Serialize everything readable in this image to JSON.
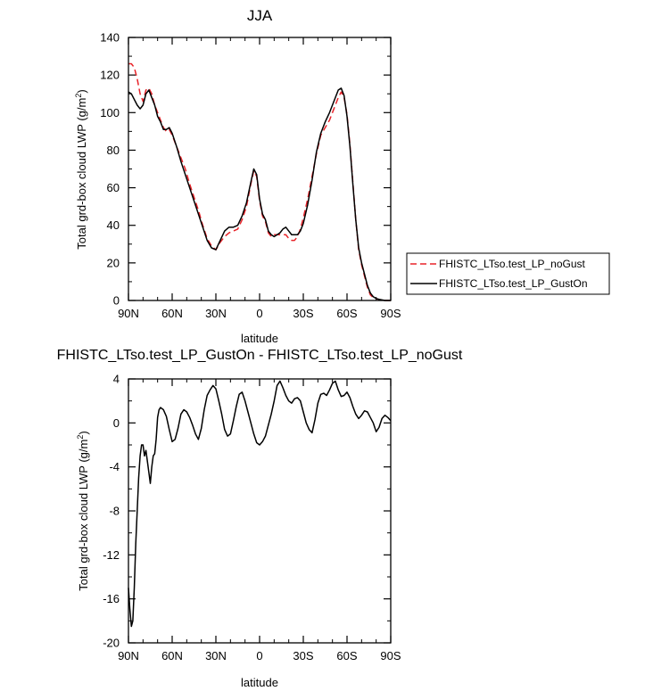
{
  "chart_data": [
    {
      "type": "line",
      "title": "JJA",
      "xlabel": "latitude",
      "ylabel": "Total grd-box cloud LWP (g/m²)",
      "xlim": [
        90,
        -90
      ],
      "ylim": [
        0,
        140
      ],
      "xticks": [
        {
          "value": 90,
          "label": "90N"
        },
        {
          "value": 60,
          "label": "60N"
        },
        {
          "value": 30,
          "label": "30N"
        },
        {
          "value": 0,
          "label": "0"
        },
        {
          "value": -30,
          "label": "30S"
        },
        {
          "value": -60,
          "label": "60S"
        },
        {
          "value": -90,
          "label": "90S"
        }
      ],
      "yticks": [
        0,
        20,
        40,
        60,
        80,
        100,
        120,
        140
      ],
      "legend": [
        "FHISTC_LTso.test_LP_noGust",
        "FHISTC_LTso.test_LP_GustOn"
      ],
      "series": [
        {
          "name": "FHISTC_LTso.test_LP_noGust",
          "color": "#e8242a",
          "dash": "dashed",
          "x": [
            90,
            88,
            86,
            84,
            82,
            80,
            78,
            76,
            74,
            72,
            70,
            68,
            66,
            64,
            62,
            60,
            57,
            54,
            51,
            48,
            45,
            42,
            39,
            36,
            33,
            30,
            27,
            24,
            21,
            18,
            15,
            12,
            9,
            6,
            4,
            2,
            0,
            -2,
            -4,
            -6,
            -8,
            -10,
            -12,
            -14,
            -16,
            -18,
            -20,
            -22,
            -24,
            -26,
            -28,
            -30,
            -33,
            -36,
            -39,
            -42,
            -45,
            -48,
            -51,
            -54,
            -56,
            -58,
            -60,
            -62,
            -64,
            -66,
            -68,
            -70,
            -72,
            -74,
            -76,
            -78,
            -80,
            -82,
            -84,
            -86,
            -88,
            -90
          ],
          "values": [
            126,
            126,
            124,
            118,
            110,
            106,
            112,
            113,
            110,
            104,
            100,
            96,
            92,
            90,
            91,
            88,
            82,
            76,
            70,
            62,
            55,
            48,
            40,
            33,
            29,
            27,
            31,
            34,
            36,
            37,
            38,
            43,
            50,
            62,
            69,
            66,
            53,
            45,
            42,
            36,
            34,
            35,
            35,
            35,
            35,
            35,
            33,
            32,
            32,
            34,
            38,
            44,
            54,
            66,
            78,
            88,
            92,
            96,
            102,
            108,
            111,
            108,
            99,
            83,
            63,
            43,
            27,
            19,
            13,
            7,
            3,
            1.5,
            1,
            0.5,
            0.2,
            0,
            0,
            0
          ]
        },
        {
          "name": "FHISTC_LTso.test_LP_GustOn",
          "color": "#000000",
          "dash": "solid",
          "x": [
            90,
            88,
            86,
            84,
            82,
            80,
            78,
            76,
            74,
            72,
            70,
            68,
            66,
            64,
            62,
            60,
            57,
            54,
            51,
            48,
            45,
            42,
            39,
            36,
            33,
            30,
            27,
            24,
            21,
            18,
            15,
            12,
            9,
            6,
            4,
            2,
            0,
            -2,
            -4,
            -6,
            -8,
            -10,
            -12,
            -14,
            -16,
            -18,
            -20,
            -22,
            -24,
            -26,
            -28,
            -30,
            -33,
            -36,
            -39,
            -42,
            -45,
            -48,
            -51,
            -54,
            -56,
            -58,
            -60,
            -62,
            -64,
            -66,
            -68,
            -70,
            -72,
            -74,
            -76,
            -78,
            -80,
            -82,
            -84,
            -86,
            -88,
            -90
          ],
          "values": [
            111,
            110,
            107,
            104,
            102,
            104,
            110,
            112,
            108,
            104,
            98,
            95,
            91,
            91,
            92,
            89,
            82,
            74,
            67,
            60,
            53,
            46,
            39,
            32,
            28,
            27,
            32,
            37,
            39,
            39,
            40,
            45,
            52,
            63,
            70,
            67,
            54,
            46,
            43,
            37,
            35,
            34,
            35,
            36,
            38,
            39,
            37,
            35,
            35,
            35,
            37,
            41,
            51,
            64,
            79,
            89,
            95,
            100,
            106,
            112,
            113,
            109,
            98,
            82,
            62,
            43,
            28,
            20,
            14,
            8,
            4,
            2,
            1,
            0.6,
            0.3,
            0,
            0,
            0
          ]
        }
      ]
    },
    {
      "type": "line",
      "title": "FHISTC_LTso.test_LP_GustOn - FHISTC_LTso.test_LP_noGust",
      "xlabel": "latitude",
      "ylabel": "Total grd-box cloud LWP (g/m²)",
      "xlim": [
        90,
        -90
      ],
      "ylim": [
        -20,
        4
      ],
      "xticks": [
        {
          "value": 90,
          "label": "90N"
        },
        {
          "value": 60,
          "label": "60N"
        },
        {
          "value": 30,
          "label": "30N"
        },
        {
          "value": 0,
          "label": "0"
        },
        {
          "value": -30,
          "label": "30S"
        },
        {
          "value": -60,
          "label": "60S"
        },
        {
          "value": -90,
          "label": "90S"
        }
      ],
      "yticks": [
        -20,
        -16,
        -12,
        -8,
        -4,
        0,
        4
      ],
      "series": [
        {
          "name": "FHISTC_LTso.test_LP_GustOn - FHISTC_LTso.test_LP_noGust",
          "color": "#000000",
          "dash": "solid",
          "x": [
            90,
            89,
            88,
            87,
            86,
            85,
            84,
            83,
            82,
            81,
            80,
            79,
            78,
            77,
            76,
            75,
            74,
            73,
            72,
            71,
            70,
            69,
            68,
            66,
            64,
            62,
            60,
            58,
            56,
            54,
            52,
            50,
            48,
            46,
            44,
            42,
            40,
            38,
            36,
            34,
            32,
            30,
            28,
            26,
            24,
            22,
            20,
            18,
            16,
            14,
            12,
            10,
            8,
            6,
            4,
            2,
            0,
            -2,
            -4,
            -6,
            -8,
            -10,
            -12,
            -14,
            -16,
            -18,
            -20,
            -22,
            -24,
            -26,
            -28,
            -30,
            -32,
            -34,
            -36,
            -38,
            -40,
            -42,
            -44,
            -46,
            -48,
            -50,
            -52,
            -54,
            -56,
            -58,
            -60,
            -62,
            -64,
            -66,
            -68,
            -70,
            -72,
            -74,
            -76,
            -78,
            -80,
            -82,
            -84,
            -86,
            -88,
            -90
          ],
          "values": [
            -15,
            -17,
            -18.5,
            -18,
            -15,
            -11,
            -8,
            -5,
            -3,
            -2,
            -2,
            -3,
            -2.5,
            -3.5,
            -4.5,
            -5.5,
            -4,
            -3,
            -2.8,
            -1.5,
            0.5,
            1.2,
            1.4,
            1.2,
            0.6,
            -0.6,
            -1.7,
            -1.5,
            -0.5,
            0.8,
            1.2,
            1.0,
            0.5,
            -0.2,
            -1.0,
            -1.5,
            -0.5,
            1.2,
            2.5,
            3.0,
            3.4,
            3.1,
            2.0,
            0.8,
            -0.6,
            -1.2,
            -1.0,
            0.2,
            1.5,
            2.6,
            2.8,
            2.0,
            1.0,
            0.0,
            -1.0,
            -1.8,
            -2.0,
            -1.7,
            -1.2,
            -0.2,
            0.8,
            2.0,
            3.4,
            3.8,
            3.2,
            2.5,
            2.0,
            1.8,
            2.2,
            2.3,
            2.0,
            1.0,
            0.0,
            -0.6,
            -0.9,
            0.3,
            1.8,
            2.6,
            2.7,
            2.5,
            3.0,
            3.6,
            3.8,
            3.0,
            2.4,
            2.5,
            2.8,
            2.3,
            1.5,
            0.8,
            0.4,
            0.7,
            1.1,
            1.0,
            0.5,
            0.0,
            -0.8,
            -0.4,
            0.4,
            0.7,
            0.5,
            0.2
          ]
        }
      ]
    }
  ]
}
